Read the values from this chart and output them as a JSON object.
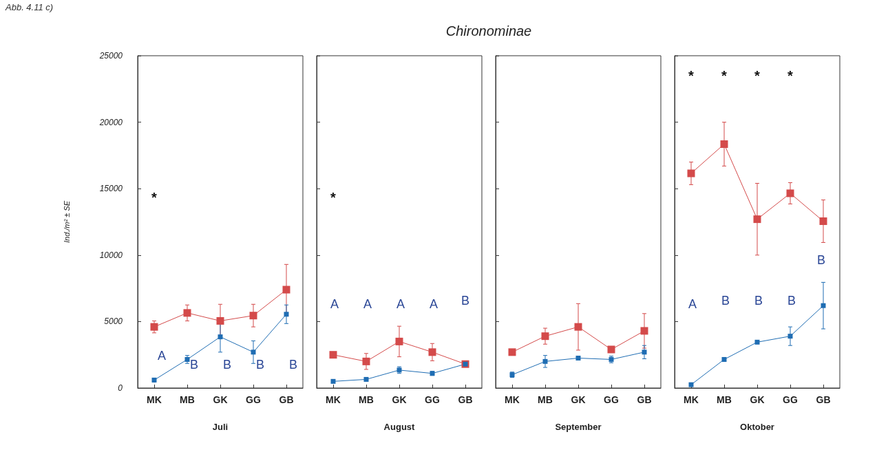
{
  "chart_data": [
    {
      "type": "line",
      "xlabel": "Juli",
      "ylabel": "Ind./m² ± SE",
      "categories": [
        "MK",
        "MB",
        "GK",
        "GG",
        "GB"
      ],
      "ylim": [
        0,
        25000
      ],
      "yticks": [
        0,
        5000,
        10000,
        15000,
        20000,
        25000
      ],
      "grid": false,
      "marker": "square",
      "line_style": "solid",
      "series": [
        {
          "color": "#d44a4a",
          "values": [
            4600,
            5650,
            5050,
            5450,
            7400
          ],
          "errors": [
            450,
            600,
            1250,
            850,
            1900
          ]
        },
        {
          "color": "#1f6db3",
          "values": [
            600,
            2150,
            3850,
            2700,
            5550
          ],
          "errors": [
            150,
            300,
            1150,
            850,
            700
          ]
        }
      ],
      "annotations": [
        "Abb. 4.11 c)",
        "Chironominae",
        "*",
        "A",
        "B",
        "B",
        "B",
        "B"
      ]
    },
    {
      "type": "line",
      "xlabel": "August",
      "categories": [
        "MK",
        "MB",
        "GK",
        "GG",
        "GB"
      ],
      "ylim": [
        0,
        25000
      ],
      "yticks": [
        0,
        5000,
        10000,
        15000,
        20000,
        25000
      ],
      "tick_labels": "x",
      "grid": false,
      "marker": "square",
      "line_style": "solid",
      "series": [
        {
          "color": "#d44a4a",
          "values": [
            2500,
            2000,
            3500,
            2700,
            1800
          ],
          "errors": [
            200,
            600,
            1150,
            650,
            null
          ]
        },
        {
          "color": "#1f6db3",
          "values": [
            500,
            650,
            1350,
            1100,
            1800
          ],
          "errors": [
            100,
            100,
            250,
            150,
            null
          ]
        }
      ],
      "annotations": [
        "*",
        "A",
        "A",
        "A",
        "A",
        "B"
      ]
    },
    {
      "type": "line",
      "xlabel": "September",
      "categories": [
        "MK",
        "MB",
        "GK",
        "GG",
        "GB"
      ],
      "ylim": [
        0,
        25000
      ],
      "yticks": [
        0,
        5000,
        10000,
        15000,
        20000,
        25000
      ],
      "tick_labels": "x",
      "grid": false,
      "marker": "square",
      "line_style": "solid",
      "series": [
        {
          "color": "#d44a4a",
          "values": [
            2700,
            3900,
            4600,
            2900,
            4300
          ],
          "errors": [
            200,
            600,
            1750,
            100,
            1300
          ]
        },
        {
          "color": "#1f6db3",
          "values": [
            1000,
            2000,
            2250,
            2150,
            2700
          ],
          "errors": [
            200,
            450,
            150,
            250,
            500
          ]
        }
      ]
    },
    {
      "type": "line",
      "xlabel": "Oktober",
      "categories": [
        "MK",
        "MB",
        "GK",
        "GG",
        "GB"
      ],
      "ylim": [
        0,
        25000
      ],
      "yticks": [
        0,
        5000,
        10000,
        15000,
        20000,
        25000
      ],
      "tick_labels": "x",
      "grid": false,
      "marker": "square",
      "line_style": "solid",
      "series": [
        {
          "color": "#d44a4a",
          "values": [
            16150,
            18350,
            12700,
            14650,
            12550
          ],
          "errors": [
            850,
            1650,
            2700,
            800,
            1600
          ]
        },
        {
          "color": "#1f6db3",
          "values": [
            250,
            2150,
            3450,
            3900,
            6200
          ],
          "errors": [
            100,
            150,
            100,
            700,
            1750
          ]
        }
      ],
      "annotations": [
        "*",
        "*",
        "*",
        "*",
        "A",
        "B",
        "B",
        "B",
        "B"
      ]
    }
  ]
}
